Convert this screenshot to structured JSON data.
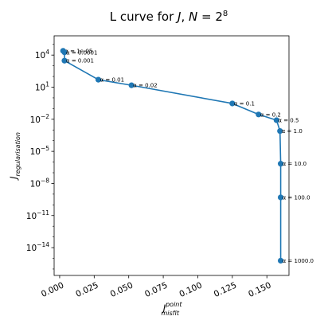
{
  "chart_data": {
    "type": "line",
    "title": {
      "prefix": "L curve for ",
      "J": "J",
      "comma": ", ",
      "N": "N",
      "equals": " = 2",
      "exponent": "8"
    },
    "xlabel": {
      "main": "J",
      "sup": "point",
      "sub": "misfit"
    },
    "ylabel": {
      "main": "J",
      "sub": "regularisation"
    },
    "xscale": "linear",
    "yscale": "log",
    "xlim": [
      -0.004,
      0.166
    ],
    "ylim_log10": [
      -16.6,
      5.8
    ],
    "xticks": [
      {
        "value": 0.0,
        "label": "0.000"
      },
      {
        "value": 0.025,
        "label": "0.025"
      },
      {
        "value": 0.05,
        "label": "0.050"
      },
      {
        "value": 0.075,
        "label": "0.075"
      },
      {
        "value": 0.1,
        "label": "0.100"
      },
      {
        "value": 0.125,
        "label": "0.125"
      },
      {
        "value": 0.15,
        "label": "0.150"
      }
    ],
    "yticks": [
      {
        "log10": 4,
        "base": "10",
        "exp": "4"
      },
      {
        "log10": 1,
        "base": "10",
        "exp": "1"
      },
      {
        "log10": -2,
        "base": "10",
        "exp": "−2"
      },
      {
        "log10": -5,
        "base": "10",
        "exp": "−5"
      },
      {
        "log10": -8,
        "base": "10",
        "exp": "−8"
      },
      {
        "log10": -11,
        "base": "10",
        "exp": "−11"
      },
      {
        "log10": -14,
        "base": "10",
        "exp": "−14"
      }
    ],
    "grid": false,
    "legend": "none",
    "line_color": "#1f77b4",
    "marker_color": "#1f77b4",
    "points": [
      {
        "label": "α = 1e-05",
        "x": 0.0025,
        "y": 25000
      },
      {
        "label": "α = 0.0001",
        "x": 0.0035,
        "y": 18000
      },
      {
        "label": "α = 0.001",
        "x": 0.0035,
        "y": 3000
      },
      {
        "label": "α = 0.01",
        "x": 0.028,
        "y": 50
      },
      {
        "label": "α = 0.02",
        "x": 0.052,
        "y": 15
      },
      {
        "label": "α = 0.1",
        "x": 0.125,
        "y": 0.3
      },
      {
        "label": "α = 0.2",
        "x": 0.144,
        "y": 0.028
      },
      {
        "label": "α = 0.5",
        "x": 0.157,
        "y": 0.0082
      },
      {
        "label": "α = 1.0",
        "x": 0.1595,
        "y": 0.0008
      },
      {
        "label": "α = 10.0",
        "x": 0.16,
        "y": 7e-07
      },
      {
        "label": "α = 100.0",
        "x": 0.16,
        "y": 5e-10
      },
      {
        "label": "α = 1000.0",
        "x": 0.16,
        "y": 6e-16
      }
    ]
  }
}
